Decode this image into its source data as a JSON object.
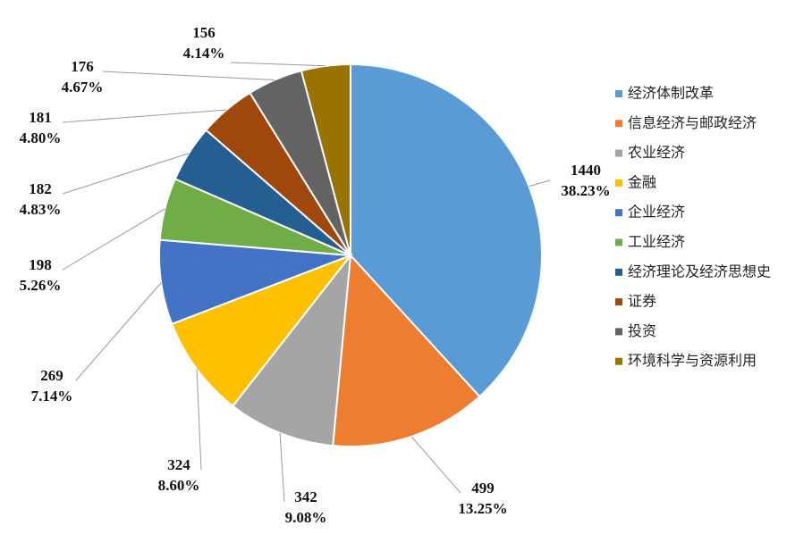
{
  "chart_data": {
    "type": "pie",
    "categories": [
      "经济体制改革",
      "信息经济与邮政经济",
      "农业经济",
      "金融",
      "企业经济",
      "工业经济",
      "经济理论及经济思想史",
      "证券",
      "投资",
      "环境科学与资源利用"
    ],
    "values": [
      1440,
      499,
      342,
      324,
      269,
      198,
      182,
      181,
      176,
      156
    ],
    "percents": [
      38.23,
      13.25,
      9.08,
      8.6,
      7.14,
      5.26,
      4.83,
      4.8,
      4.67,
      4.14
    ],
    "percent_labels": [
      "38.23%",
      "13.25%",
      "9.08%",
      "8.60%",
      "7.14%",
      "5.26%",
      "4.83%",
      "4.80%",
      "4.67%",
      "4.14%"
    ],
    "colors": [
      "#5b9bd5",
      "#ed7d31",
      "#a5a5a5",
      "#ffc000",
      "#4472c4",
      "#70ad47",
      "#255e91",
      "#9e480e",
      "#636363",
      "#997300"
    ],
    "legend": "right"
  }
}
